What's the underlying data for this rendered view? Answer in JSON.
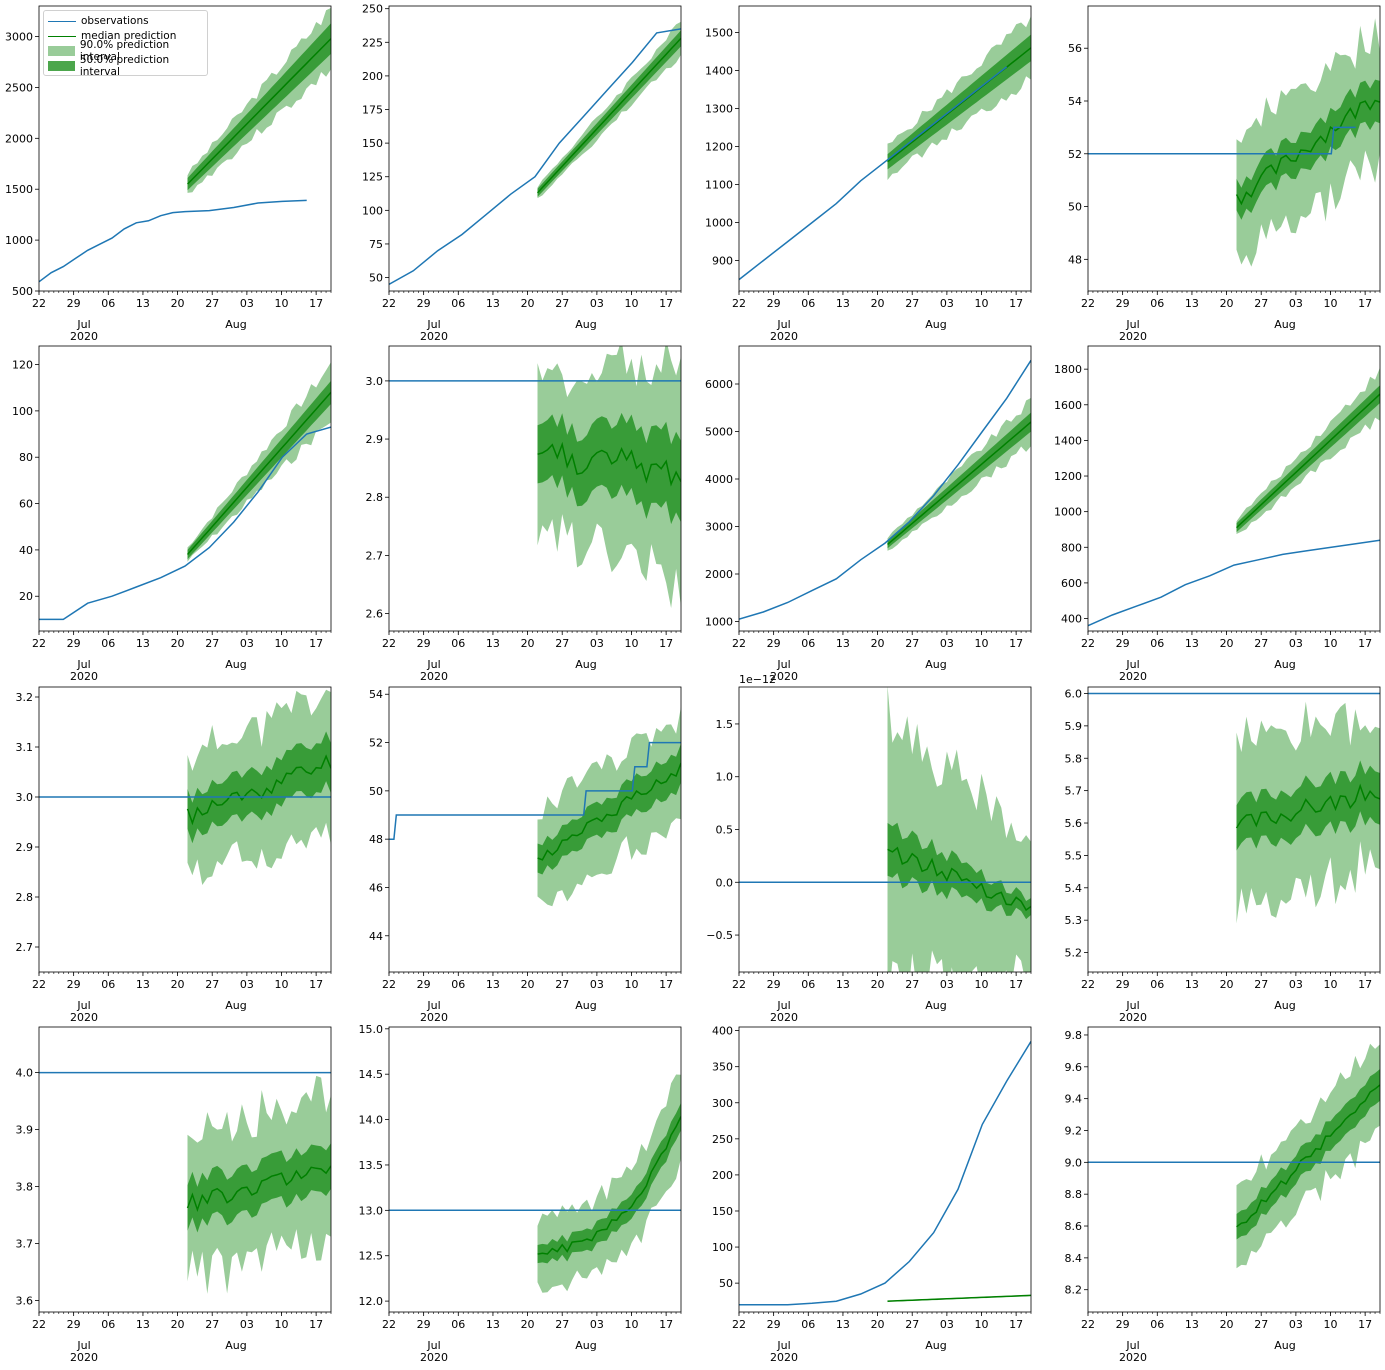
{
  "legend": {
    "items": [
      {
        "label": "observations",
        "kind": "line",
        "color": "#1f77b4"
      },
      {
        "label": "median prediction",
        "kind": "line",
        "color": "#008000"
      },
      {
        "label": "90.0% prediction interval",
        "kind": "band",
        "color": "#99cc99"
      },
      {
        "label": "50.0% prediction interval",
        "kind": "band",
        "color": "#4ca64c"
      }
    ]
  },
  "colors": {
    "observations": "#1f77b4",
    "median": "#008000",
    "band90": "#99cc99",
    "band50": "#339933"
  },
  "x_axis": {
    "start": "2020-06-22",
    "end": "2020-08-20",
    "forecast_start": "2020-07-22",
    "major_ticks": [
      "22",
      "29",
      "06",
      "13",
      "20",
      "27",
      "03",
      "10",
      "17"
    ],
    "month_labels": [
      "Jul",
      "Aug"
    ],
    "year_label": "2020"
  },
  "chart_data": [
    {
      "type": "line",
      "ylim": [
        500,
        3300
      ],
      "yticks": [
        "500",
        "1000",
        "1500",
        "2000",
        "2500",
        "3000"
      ],
      "obs": [
        [
          0,
          590
        ],
        [
          5,
          680
        ],
        [
          10,
          740
        ],
        [
          15,
          820
        ],
        [
          20,
          900
        ],
        [
          25,
          960
        ],
        [
          30,
          1020
        ],
        [
          35,
          1110
        ],
        [
          40,
          1170
        ],
        [
          45,
          1190
        ],
        [
          50,
          1240
        ],
        [
          55,
          1270
        ],
        [
          60,
          1280
        ],
        [
          70,
          1290
        ],
        [
          80,
          1320
        ],
        [
          90,
          1365
        ],
        [
          100,
          1380
        ],
        [
          110,
          1390
        ]
      ],
      "median": [
        1550,
        2980
      ],
      "band50": [
        60,
        150
      ],
      "band90": [
        100,
        300
      ]
    },
    {
      "type": "line",
      "ylim": [
        40,
        252
      ],
      "yticks": [
        "50",
        "75",
        "100",
        "125",
        "150",
        "175",
        "200",
        "225",
        "250"
      ],
      "obs": [
        [
          0,
          45
        ],
        [
          10,
          55
        ],
        [
          20,
          70
        ],
        [
          30,
          82
        ],
        [
          40,
          97
        ],
        [
          50,
          112
        ],
        [
          60,
          125
        ],
        [
          70,
          150
        ],
        [
          80,
          170
        ],
        [
          90,
          190
        ],
        [
          100,
          210
        ],
        [
          110,
          232
        ],
        [
          120,
          235
        ]
      ],
      "median": [
        113,
        228
      ],
      "band50": [
        3,
        6
      ],
      "band90": [
        5,
        12
      ]
    },
    {
      "type": "line",
      "ylim": [
        820,
        1570
      ],
      "yticks": [
        "900",
        "1000",
        "1100",
        "1200",
        "1300",
        "1400",
        "1500"
      ],
      "obs": [
        [
          0,
          850
        ],
        [
          10,
          900
        ],
        [
          20,
          950
        ],
        [
          30,
          1000
        ],
        [
          40,
          1050
        ],
        [
          50,
          1110
        ],
        [
          60,
          1160
        ],
        [
          70,
          1210
        ],
        [
          80,
          1260
        ],
        [
          90,
          1310
        ],
        [
          100,
          1360
        ],
        [
          110,
          1410
        ]
      ],
      "median": [
        1160,
        1460
      ],
      "band50": [
        20,
        35
      ],
      "band90": [
        40,
        80
      ]
    },
    {
      "type": "line",
      "ylim": [
        46.8,
        57.6
      ],
      "yticks": [
        "48",
        "50",
        "52",
        "54",
        "56"
      ],
      "obs": [
        [
          0,
          52
        ],
        [
          100,
          52
        ],
        [
          101,
          53
        ],
        [
          110,
          53
        ]
      ],
      "median": [
        50.3,
        54.3
      ],
      "band50": [
        0.6,
        0.8
      ],
      "band90": [
        2.3,
        2.5
      ],
      "jitter": 0.35
    },
    {
      "type": "line",
      "ylim": [
        5,
        128
      ],
      "yticks": [
        "20",
        "40",
        "60",
        "80",
        "100",
        "120"
      ],
      "obs": [
        [
          0,
          10
        ],
        [
          10,
          10
        ],
        [
          20,
          17
        ],
        [
          30,
          20
        ],
        [
          40,
          24
        ],
        [
          50,
          28
        ],
        [
          60,
          33
        ],
        [
          70,
          41
        ],
        [
          80,
          52
        ],
        [
          90,
          65
        ],
        [
          100,
          80
        ],
        [
          110,
          90
        ],
        [
          120,
          93
        ]
      ],
      "median": [
        38,
        108
      ],
      "band50": [
        2,
        5
      ],
      "band90": [
        3,
        12
      ]
    },
    {
      "type": "line",
      "ylim": [
        2.57,
        3.06
      ],
      "yticks": [
        "2.6",
        "2.7",
        "2.8",
        "2.9",
        "3.0"
      ],
      "obs": [
        [
          0,
          3
        ],
        [
          120,
          3
        ]
      ],
      "median": [
        2.88,
        2.84
      ],
      "band50": [
        0.05,
        0.07
      ],
      "band90": [
        0.13,
        0.18
      ],
      "jitter": 0.03
    },
    {
      "type": "line",
      "ylim": [
        800,
        6800
      ],
      "yticks": [
        "1000",
        "2000",
        "3000",
        "4000",
        "5000",
        "6000"
      ],
      "obs": [
        [
          0,
          1050
        ],
        [
          10,
          1200
        ],
        [
          20,
          1400
        ],
        [
          30,
          1650
        ],
        [
          40,
          1900
        ],
        [
          50,
          2300
        ],
        [
          60,
          2650
        ],
        [
          70,
          3100
        ],
        [
          80,
          3650
        ],
        [
          90,
          4300
        ],
        [
          100,
          5000
        ],
        [
          110,
          5700
        ],
        [
          120,
          6500
        ]
      ],
      "median": [
        2620,
        5200
      ],
      "band50": [
        80,
        200
      ],
      "band90": [
        150,
        450
      ]
    },
    {
      "type": "line",
      "ylim": [
        330,
        1930
      ],
      "yticks": [
        "400",
        "600",
        "800",
        "1000",
        "1200",
        "1400",
        "1600",
        "1800"
      ],
      "obs": [
        [
          0,
          360
        ],
        [
          10,
          420
        ],
        [
          20,
          470
        ],
        [
          30,
          520
        ],
        [
          40,
          590
        ],
        [
          50,
          640
        ],
        [
          60,
          700
        ],
        [
          70,
          730
        ],
        [
          80,
          760
        ],
        [
          90,
          780
        ],
        [
          100,
          800
        ],
        [
          110,
          820
        ],
        [
          120,
          840
        ]
      ],
      "median": [
        910,
        1660
      ],
      "band50": [
        25,
        50
      ],
      "band90": [
        45,
        130
      ]
    },
    {
      "type": "line",
      "ylim": [
        2.65,
        3.22
      ],
      "yticks": [
        "2.7",
        "2.8",
        "2.9",
        "3.0",
        "3.1",
        "3.2"
      ],
      "obs": [
        [
          0,
          3
        ],
        [
          120,
          3
        ]
      ],
      "median": [
        2.96,
        3.07
      ],
      "band50": [
        0.04,
        0.05
      ],
      "band90": [
        0.12,
        0.14
      ],
      "jitter": 0.02
    },
    {
      "type": "line",
      "ylim": [
        42.5,
        54.3
      ],
      "yticks": [
        "44",
        "46",
        "48",
        "50",
        "52",
        "54"
      ],
      "obs": [
        [
          0,
          48
        ],
        [
          2,
          48
        ],
        [
          3,
          49
        ],
        [
          80,
          49
        ],
        [
          81,
          50
        ],
        [
          100,
          50
        ],
        [
          101,
          51
        ],
        [
          106,
          51
        ],
        [
          107,
          52
        ],
        [
          120,
          52
        ]
      ],
      "median": [
        47.1,
        51.0
      ],
      "band50": [
        0.6,
        0.8
      ],
      "band90": [
        2.0,
        2.2
      ],
      "jitter": 0.25
    },
    {
      "type": "line",
      "ylim": [
        -0.85,
        1.85
      ],
      "yticks": [
        "−0.5",
        "0.0",
        "0.5",
        "1.0",
        "1.5"
      ],
      "offset_text": "1e−12",
      "obs": [
        [
          0,
          0
        ],
        [
          120,
          0
        ]
      ],
      "median": [
        0.3,
        -0.22
      ],
      "band50": [
        0.25,
        0.08
      ],
      "band90": [
        1.3,
        0.6
      ],
      "jitter": 0.08
    },
    {
      "type": "line",
      "ylim": [
        5.14,
        6.02
      ],
      "yticks": [
        "5.2",
        "5.3",
        "5.4",
        "5.5",
        "5.6",
        "5.7",
        "5.8",
        "5.9",
        "6.0"
      ],
      "obs": [
        [
          0,
          6
        ],
        [
          120,
          6
        ]
      ],
      "median": [
        5.59,
        5.7
      ],
      "band50": [
        0.07,
        0.08
      ],
      "band90": [
        0.27,
        0.22
      ],
      "jitter": 0.03
    },
    {
      "type": "line",
      "ylim": [
        3.58,
        4.08
      ],
      "yticks": [
        "3.6",
        "3.7",
        "3.8",
        "3.9",
        "4.0"
      ],
      "obs": [
        [
          0,
          4
        ],
        [
          120,
          4
        ]
      ],
      "median": [
        3.77,
        3.83
      ],
      "band50": [
        0.04,
        0.04
      ],
      "band90": [
        0.13,
        0.13
      ],
      "jitter": 0.015
    },
    {
      "type": "line",
      "ylim": [
        11.88,
        15.02
      ],
      "yticks": [
        "12.0",
        "12.5",
        "13.0",
        "13.5",
        "14.0",
        "14.5",
        "15.0"
      ],
      "obs": [
        [
          0,
          13
        ],
        [
          120,
          13
        ]
      ],
      "median": [
        12.56,
        14.05
      ],
      "band50": [
        0.1,
        0.15
      ],
      "band90": [
        0.35,
        0.5
      ],
      "jitter": 0.05,
      "curve": 2.5
    },
    {
      "type": "line",
      "ylim": [
        10,
        405
      ],
      "yticks": [
        "50",
        "100",
        "150",
        "200",
        "250",
        "300",
        "350",
        "400"
      ],
      "obs": [
        [
          0,
          20
        ],
        [
          10,
          20
        ],
        [
          20,
          20
        ],
        [
          30,
          22
        ],
        [
          40,
          25
        ],
        [
          50,
          35
        ],
        [
          60,
          50
        ],
        [
          70,
          80
        ],
        [
          80,
          120
        ],
        [
          90,
          180
        ],
        [
          100,
          270
        ],
        [
          110,
          330
        ],
        [
          120,
          385
        ]
      ],
      "median": [
        25,
        33
      ],
      "band50": [
        0.5,
        0.5
      ],
      "band90": [
        1,
        1
      ]
    },
    {
      "type": "line",
      "ylim": [
        8.06,
        9.85
      ],
      "yticks": [
        "8.2",
        "8.4",
        "8.6",
        "8.8",
        "9.0",
        "9.2",
        "9.4",
        "9.6",
        "9.8"
      ],
      "obs": [
        [
          0,
          9
        ],
        [
          120,
          9
        ]
      ],
      "median": [
        8.58,
        9.48
      ],
      "band50": [
        0.08,
        0.1
      ],
      "band90": [
        0.22,
        0.3
      ],
      "jitter": 0.03
    }
  ]
}
